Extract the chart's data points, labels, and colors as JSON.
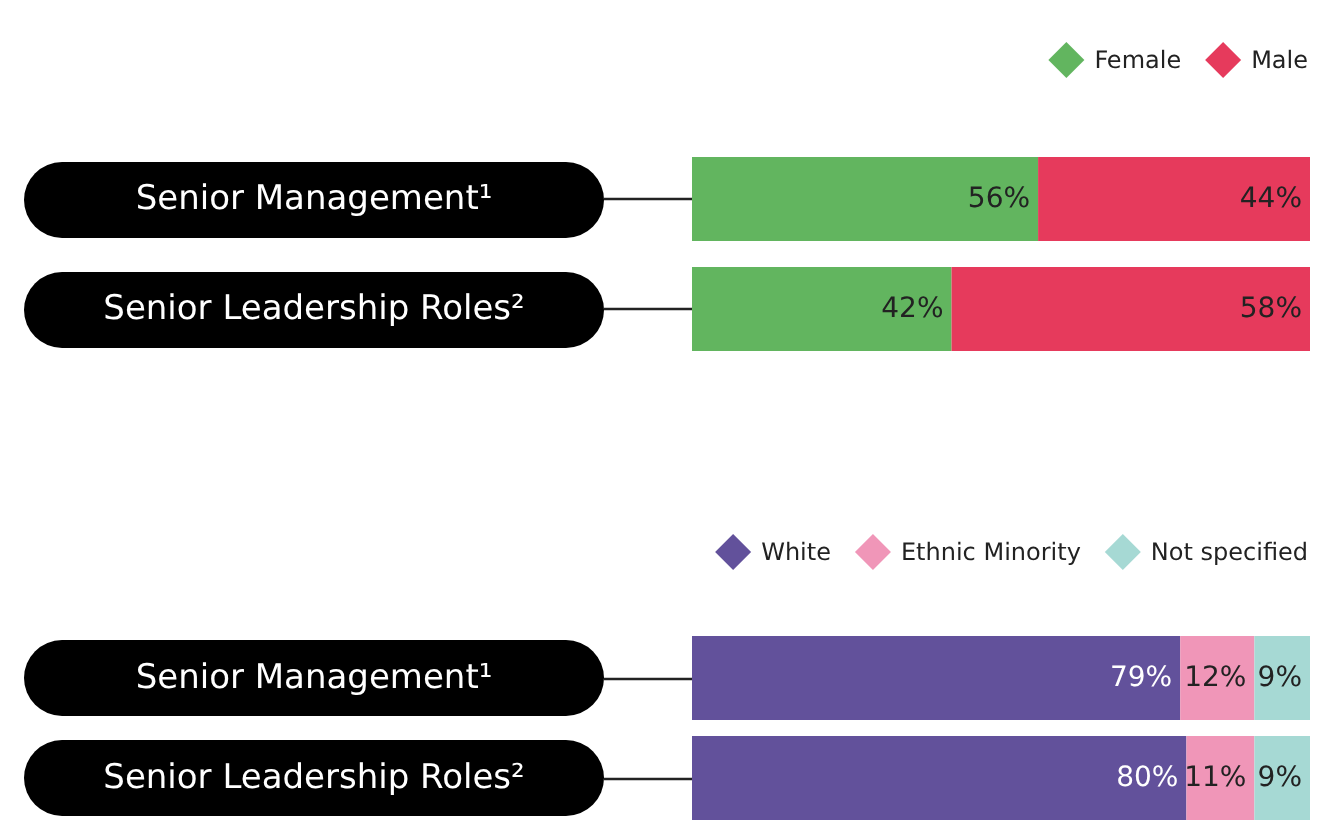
{
  "chart_data": [
    {
      "type": "bar",
      "orientation": "horizontal",
      "stacked": true,
      "categories": [
        "Senior Management¹",
        "Senior Leadership Roles²"
      ],
      "xlim": [
        0,
        100
      ],
      "tick_labels": "y",
      "legend": "top right",
      "grid": false,
      "series": [
        {
          "name": "Female",
          "color": "#62b55f",
          "values": [
            56,
            42
          ],
          "value_labels": [
            "56%",
            "42%"
          ]
        },
        {
          "name": "Male",
          "color": "#e63a5c",
          "values": [
            44,
            58
          ],
          "value_labels": [
            "44%",
            "58%"
          ]
        }
      ]
    },
    {
      "type": "bar",
      "orientation": "horizontal",
      "stacked": true,
      "categories": [
        "Senior Management¹",
        "Senior Leadership Roles²"
      ],
      "xlim": [
        0,
        100
      ],
      "tick_labels": "y",
      "legend": "top right",
      "grid": false,
      "series": [
        {
          "name": "White",
          "color": "#62519b",
          "values": [
            79,
            80
          ],
          "value_labels": [
            "79%",
            "80%"
          ]
        },
        {
          "name": "Ethnic Minority",
          "color": "#f096b8",
          "values": [
            12,
            11
          ],
          "value_labels": [
            "12%",
            "11%"
          ]
        },
        {
          "name": "Not specified",
          "color": "#a6d9d4",
          "values": [
            9,
            9
          ],
          "value_labels": [
            "9%",
            "9%"
          ]
        }
      ]
    }
  ]
}
